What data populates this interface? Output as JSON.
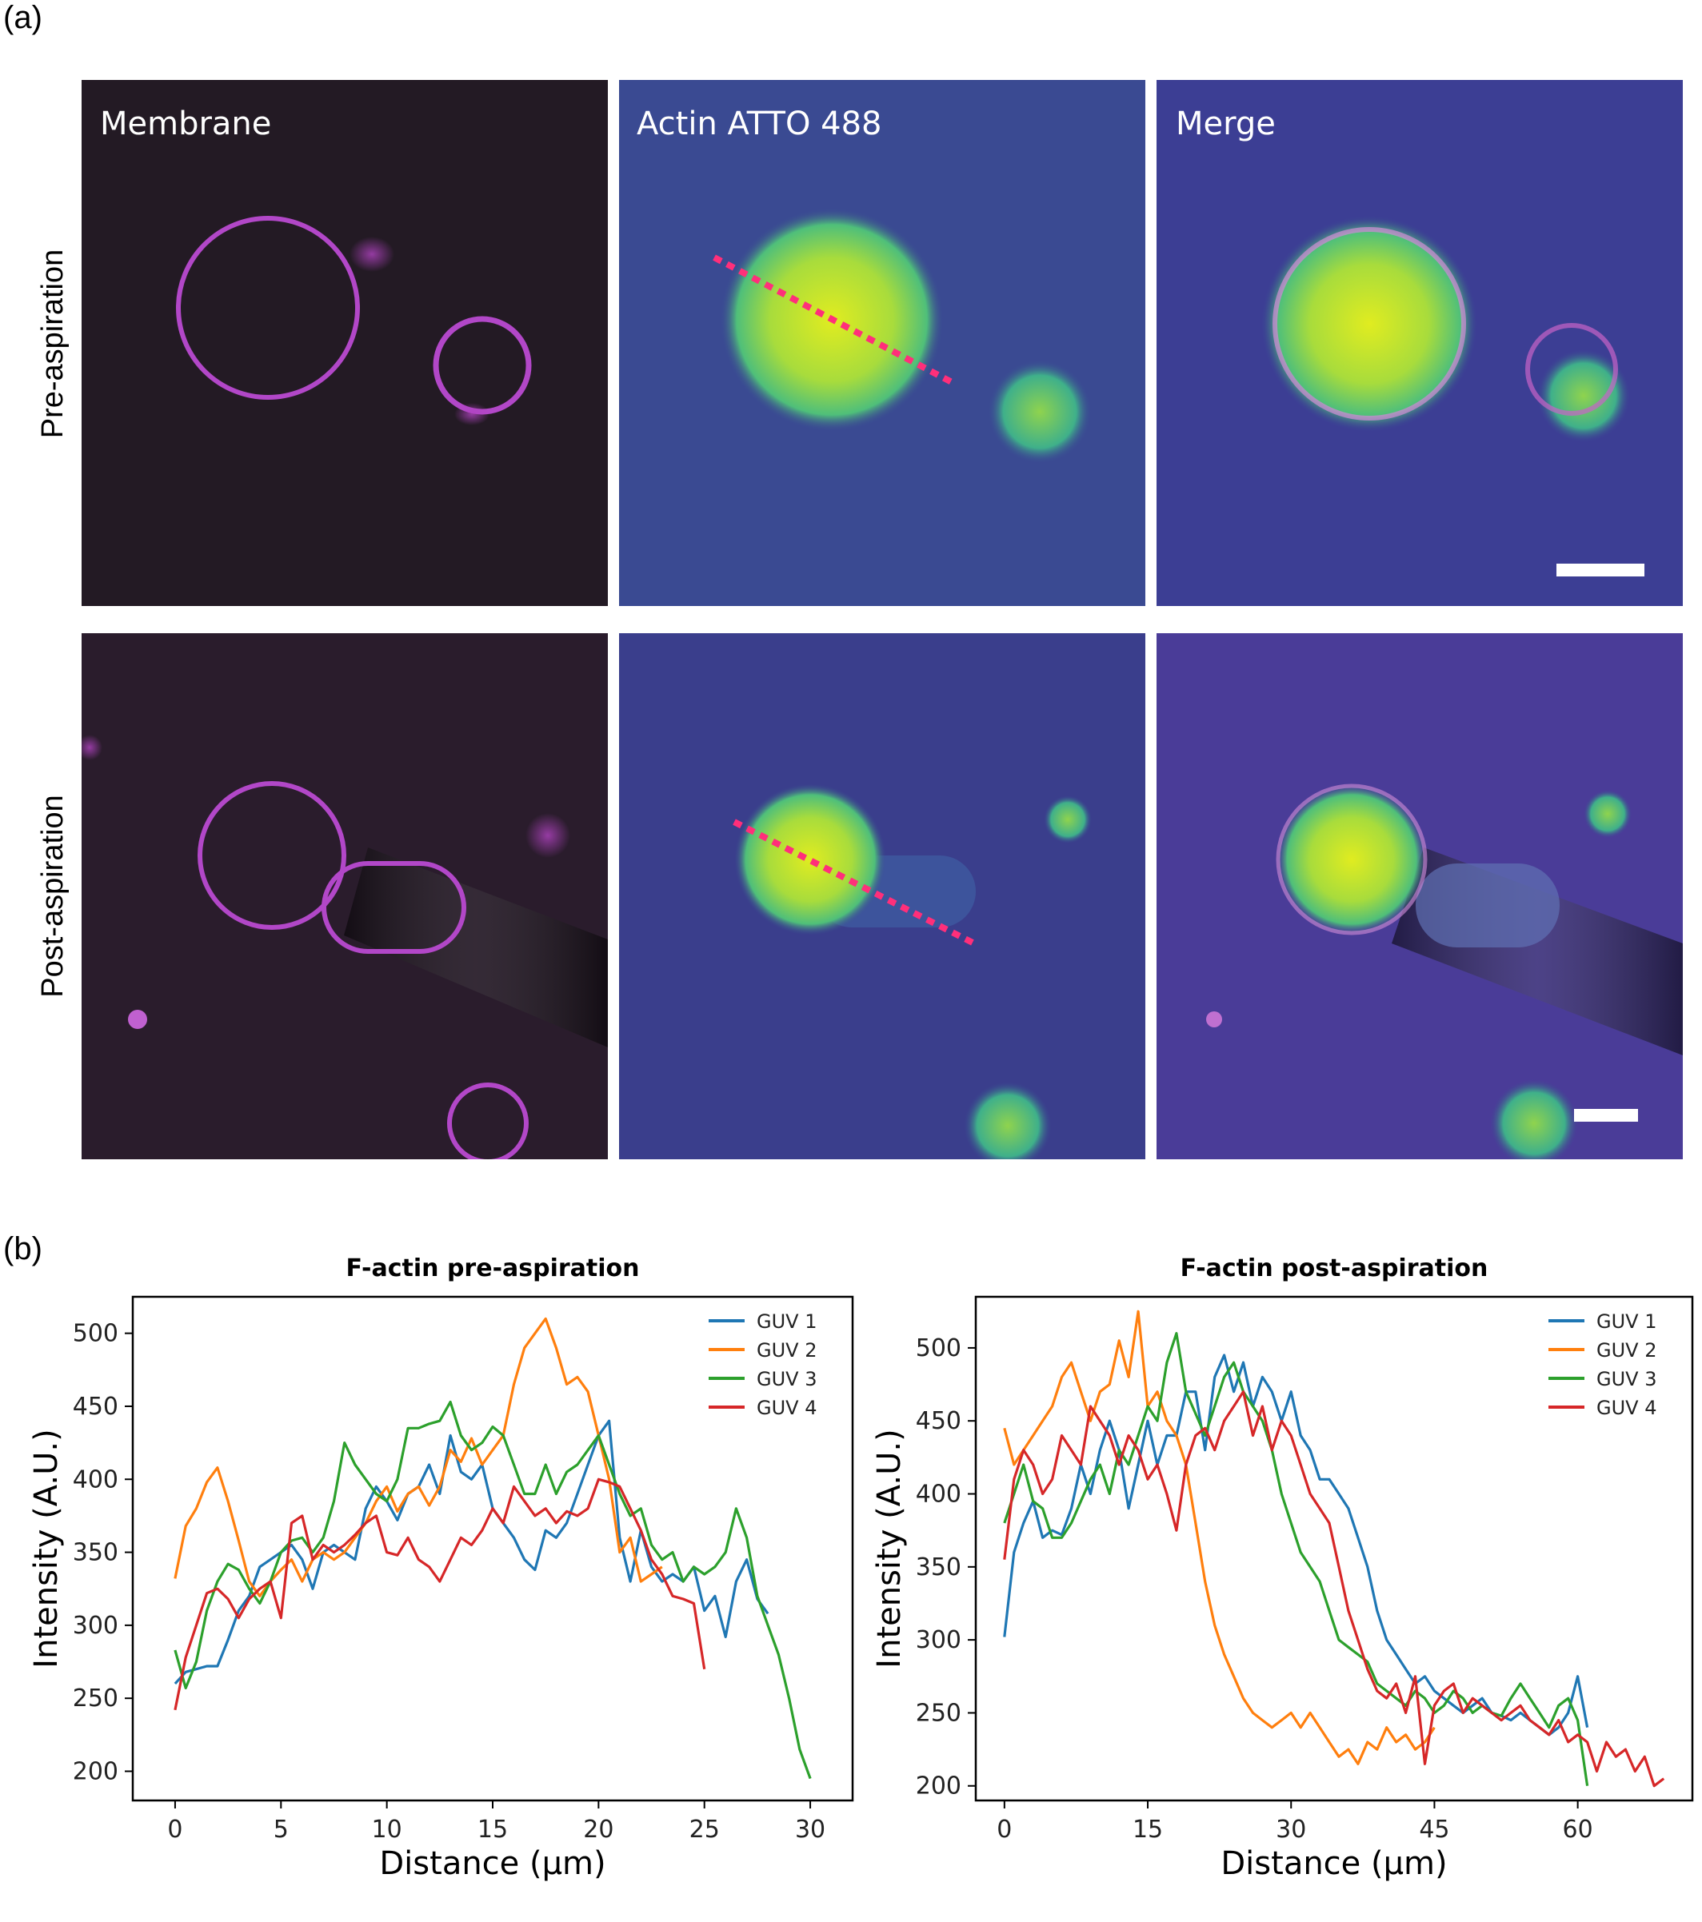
{
  "panel_a": {
    "label": "(a)",
    "column_labels": [
      "Membrane",
      "Actin ATTO 488",
      "Merge"
    ],
    "row_labels": [
      "Pre-aspiration",
      "Post-aspiration"
    ]
  },
  "panel_b": {
    "label": "(b)"
  },
  "colors": {
    "guv1": "#1f77b4",
    "guv2": "#ff7f0e",
    "guv3": "#2ca02c",
    "guv4": "#d62728",
    "line_profile": "#ff2f7a",
    "membrane": "#c050d0",
    "actin_bg": "#3a4a92",
    "actin_fill": "#b6e02c"
  },
  "chart_data": [
    {
      "type": "line",
      "title": "F-actin pre-aspiration",
      "xlabel": "Distance (μm)",
      "ylabel": "Intensity (A.U.)",
      "xlim": [
        -2,
        32
      ],
      "ylim": [
        180,
        525
      ],
      "xticks": [
        0,
        5,
        10,
        15,
        20,
        25,
        30
      ],
      "yticks": [
        200,
        250,
        300,
        350,
        400,
        450,
        500
      ],
      "legend_position": "top-right",
      "series": [
        {
          "name": "GUV 1",
          "color_key": "guv1",
          "x": [
            0,
            0.5,
            1,
            1.5,
            2,
            2.5,
            3,
            3.5,
            4,
            4.5,
            5,
            5.5,
            6,
            6.5,
            7,
            7.5,
            8,
            8.5,
            9,
            9.5,
            10,
            10.5,
            11,
            11.5,
            12,
            12.5,
            13,
            13.5,
            14,
            14.5,
            15,
            15.5,
            16,
            16.5,
            17,
            17.5,
            18,
            18.5,
            19,
            19.5,
            20,
            20.5,
            21,
            21.5,
            22,
            22.5,
            23,
            23.5,
            24,
            24.5,
            25,
            25.5,
            26,
            26.5,
            27,
            27.5,
            28
          ],
          "y": [
            260,
            268,
            270,
            272,
            272,
            290,
            310,
            320,
            340,
            345,
            350,
            355,
            345,
            325,
            350,
            355,
            350,
            345,
            380,
            395,
            385,
            372,
            390,
            395,
            410,
            390,
            430,
            405,
            400,
            410,
            380,
            370,
            360,
            345,
            338,
            365,
            360,
            370,
            390,
            410,
            430,
            440,
            360,
            330,
            365,
            340,
            330,
            335,
            330,
            340,
            310,
            320,
            292,
            330,
            345,
            318,
            308
          ]
        },
        {
          "name": "GUV 2",
          "color_key": "guv2",
          "x": [
            0,
            0.5,
            1,
            1.5,
            2,
            2.5,
            3,
            3.5,
            4,
            4.5,
            5,
            5.5,
            6,
            6.5,
            7,
            7.5,
            8,
            8.5,
            9,
            9.5,
            10,
            10.5,
            11,
            11.5,
            12,
            12.5,
            13,
            13.5,
            14,
            14.5,
            15,
            15.5,
            16,
            16.5,
            17,
            17.5,
            18,
            18.5,
            19,
            19.5,
            20,
            20.5,
            21,
            21.5,
            22,
            22.5,
            23
          ],
          "y": [
            332,
            368,
            380,
            398,
            408,
            385,
            358,
            330,
            320,
            330,
            338,
            345,
            330,
            345,
            350,
            345,
            350,
            360,
            370,
            385,
            395,
            378,
            390,
            395,
            382,
            395,
            420,
            412,
            428,
            410,
            420,
            430,
            465,
            490,
            500,
            510,
            490,
            465,
            470,
            460,
            430,
            400,
            350,
            360,
            330,
            335,
            340
          ]
        },
        {
          "name": "GUV 3",
          "color_key": "guv3",
          "x": [
            0,
            0.5,
            1,
            1.5,
            2,
            2.5,
            3,
            3.5,
            4,
            4.5,
            5,
            5.5,
            6,
            6.5,
            7,
            7.5,
            8,
            8.5,
            9,
            9.5,
            10,
            10.5,
            11,
            11.5,
            12,
            12.5,
            13,
            13.5,
            14,
            14.5,
            15,
            15.5,
            16,
            16.5,
            17,
            17.5,
            18,
            18.5,
            19,
            19.5,
            20,
            20.5,
            21,
            21.5,
            22,
            22.5,
            23,
            23.5,
            24,
            24.5,
            25,
            25.5,
            26,
            26.5,
            27,
            27.5,
            28,
            28.5,
            29,
            29.5,
            30
          ],
          "y": [
            283,
            257,
            275,
            310,
            330,
            342,
            338,
            325,
            315,
            330,
            350,
            358,
            360,
            350,
            360,
            385,
            425,
            410,
            400,
            390,
            385,
            400,
            435,
            435,
            438,
            440,
            453,
            430,
            420,
            425,
            436,
            430,
            410,
            390,
            390,
            410,
            390,
            405,
            410,
            420,
            430,
            410,
            390,
            375,
            380,
            355,
            345,
            350,
            330,
            340,
            335,
            340,
            350,
            380,
            360,
            320,
            300,
            280,
            250,
            215,
            195
          ]
        },
        {
          "name": "GUV 4",
          "color_key": "guv4",
          "x": [
            0,
            0.5,
            1,
            1.5,
            2,
            2.5,
            3,
            3.5,
            4,
            4.5,
            5,
            5.5,
            6,
            6.5,
            7,
            7.5,
            8,
            8.5,
            9,
            9.5,
            10,
            10.5,
            11,
            11.5,
            12,
            12.5,
            13,
            13.5,
            14,
            14.5,
            15,
            15.5,
            16,
            16.5,
            17,
            17.5,
            18,
            18.5,
            19,
            19.5,
            20,
            20.5,
            21,
            21.5,
            22,
            22.5,
            23,
            23.5,
            24,
            24.5,
            25
          ],
          "y": [
            242,
            278,
            300,
            322,
            325,
            318,
            305,
            318,
            325,
            330,
            305,
            370,
            375,
            345,
            355,
            350,
            355,
            362,
            370,
            375,
            350,
            348,
            360,
            345,
            340,
            330,
            345,
            360,
            355,
            365,
            380,
            370,
            395,
            385,
            375,
            380,
            370,
            378,
            375,
            380,
            400,
            398,
            395,
            380,
            365,
            345,
            335,
            320,
            318,
            315,
            270
          ]
        }
      ]
    },
    {
      "type": "line",
      "title": "F-actin post-aspiration",
      "xlabel": "Distance (μm)",
      "ylabel": "Intensity (A.U.)",
      "xlim": [
        -3,
        72
      ],
      "ylim": [
        190,
        535
      ],
      "xticks": [
        0,
        15,
        30,
        45,
        60
      ],
      "yticks": [
        200,
        250,
        300,
        350,
        400,
        450,
        500
      ],
      "legend_position": "top-right",
      "series": [
        {
          "name": "GUV 1",
          "color_key": "guv1",
          "x": [
            0,
            1,
            2,
            3,
            4,
            5,
            6,
            7,
            8,
            9,
            10,
            11,
            12,
            13,
            14,
            15,
            16,
            17,
            18,
            19,
            20,
            21,
            22,
            23,
            24,
            25,
            26,
            27,
            28,
            29,
            30,
            31,
            32,
            33,
            34,
            35,
            36,
            37,
            38,
            39,
            40,
            41,
            42,
            43,
            44,
            45,
            46,
            47,
            48,
            49,
            50,
            51,
            52,
            53,
            54,
            55,
            56,
            57,
            58,
            59,
            60,
            61
          ],
          "y": [
            302,
            360,
            380,
            395,
            370,
            375,
            372,
            390,
            420,
            400,
            430,
            450,
            430,
            390,
            420,
            450,
            420,
            440,
            440,
            470,
            470,
            430,
            480,
            495,
            470,
            490,
            460,
            480,
            470,
            450,
            470,
            440,
            430,
            410,
            410,
            400,
            390,
            370,
            350,
            320,
            300,
            290,
            280,
            270,
            275,
            265,
            260,
            255,
            250,
            255,
            260,
            250,
            248,
            245,
            250,
            245,
            240,
            235,
            240,
            250,
            275,
            240
          ]
        },
        {
          "name": "GUV 2",
          "color_key": "guv2",
          "x": [
            0,
            1,
            2,
            3,
            4,
            5,
            6,
            7,
            8,
            9,
            10,
            11,
            12,
            13,
            14,
            15,
            16,
            17,
            18,
            19,
            20,
            21,
            22,
            23,
            24,
            25,
            26,
            27,
            28,
            29,
            30,
            31,
            32,
            33,
            34,
            35,
            36,
            37,
            38,
            39,
            40,
            41,
            42,
            43,
            44,
            45
          ],
          "y": [
            445,
            420,
            430,
            440,
            450,
            460,
            480,
            490,
            470,
            450,
            470,
            475,
            505,
            480,
            525,
            460,
            470,
            450,
            440,
            420,
            380,
            340,
            310,
            290,
            275,
            260,
            250,
            245,
            240,
            245,
            250,
            240,
            250,
            240,
            230,
            220,
            225,
            215,
            230,
            225,
            240,
            230,
            235,
            225,
            230,
            240
          ]
        },
        {
          "name": "GUV 3",
          "color_key": "guv3",
          "x": [
            0,
            1,
            2,
            3,
            4,
            5,
            6,
            7,
            8,
            9,
            10,
            11,
            12,
            13,
            14,
            15,
            16,
            17,
            18,
            19,
            20,
            21,
            22,
            23,
            24,
            25,
            26,
            27,
            28,
            29,
            30,
            31,
            32,
            33,
            34,
            35,
            36,
            37,
            38,
            39,
            40,
            41,
            42,
            43,
            44,
            45,
            46,
            47,
            48,
            49,
            50,
            51,
            52,
            53,
            54,
            55,
            56,
            57,
            58,
            59,
            60,
            61
          ],
          "y": [
            380,
            400,
            420,
            395,
            390,
            370,
            370,
            380,
            395,
            410,
            420,
            400,
            430,
            420,
            440,
            460,
            450,
            490,
            510,
            470,
            455,
            440,
            460,
            480,
            490,
            470,
            460,
            450,
            430,
            400,
            380,
            360,
            350,
            340,
            320,
            300,
            295,
            290,
            285,
            270,
            265,
            260,
            255,
            265,
            260,
            250,
            255,
            265,
            260,
            250,
            255,
            250,
            248,
            260,
            270,
            260,
            250,
            240,
            255,
            260,
            245,
            200
          ]
        },
        {
          "name": "GUV 4",
          "color_key": "guv4",
          "x": [
            0,
            1,
            2,
            3,
            4,
            5,
            6,
            7,
            8,
            9,
            10,
            11,
            12,
            13,
            14,
            15,
            16,
            17,
            18,
            19,
            20,
            21,
            22,
            23,
            24,
            25,
            26,
            27,
            28,
            29,
            30,
            31,
            32,
            33,
            34,
            35,
            36,
            37,
            38,
            39,
            40,
            41,
            42,
            43,
            44,
            45,
            46,
            47,
            48,
            49,
            50,
            51,
            52,
            53,
            54,
            55,
            56,
            57,
            58,
            59,
            60,
            61,
            62,
            63,
            64,
            65,
            66,
            67,
            68,
            69
          ],
          "y": [
            355,
            410,
            430,
            420,
            400,
            410,
            440,
            430,
            420,
            460,
            450,
            440,
            420,
            440,
            430,
            410,
            420,
            400,
            375,
            420,
            440,
            445,
            430,
            450,
            460,
            470,
            440,
            460,
            430,
            450,
            440,
            420,
            400,
            390,
            380,
            350,
            320,
            300,
            280,
            265,
            260,
            270,
            250,
            275,
            215,
            255,
            265,
            270,
            250,
            260,
            255,
            250,
            245,
            250,
            255,
            245,
            240,
            235,
            245,
            230,
            235,
            230,
            210,
            230,
            220,
            225,
            210,
            220,
            200,
            205
          ]
        }
      ]
    }
  ]
}
